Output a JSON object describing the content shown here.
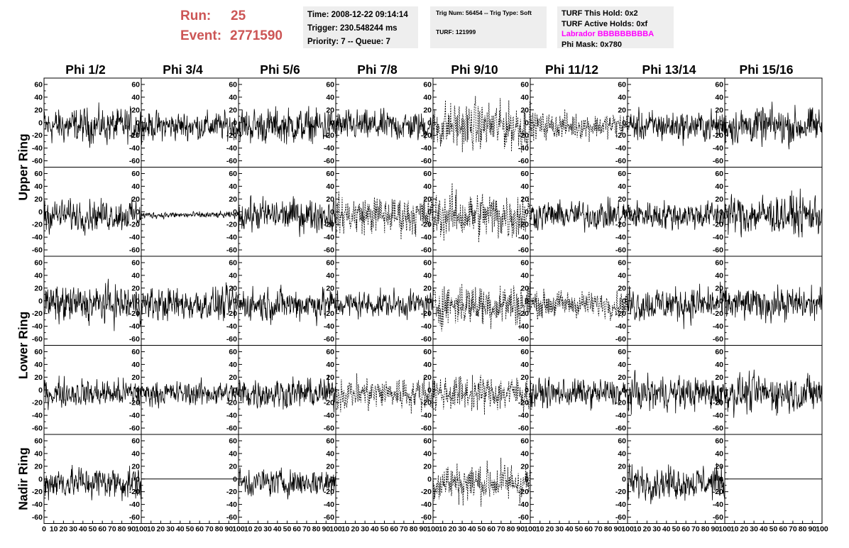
{
  "header": {
    "run_label": "Run:",
    "run_value": "25",
    "event_label": "Event:",
    "event_value": "2771590",
    "time": "Time: 2008-12-22 09:14:14",
    "trigger": "Trigger: 230.548244 ms",
    "priority": "Priority: 7 -- Queue: 7",
    "trig_num": "Trig Num: 56454 -- Trig Type: Soft",
    "turf": "TURF: 121999",
    "turf_this_hold": "TURF This Hold: 0x2",
    "turf_active_holds": "TURF Active Holds: 0xf",
    "labrador": "Labrador BBBBBBBBBA",
    "phi_mask": "Phi Mask: 0x780"
  },
  "columns": [
    "Phi 1/2",
    "Phi 3/4",
    "Phi 5/6",
    "Phi 7/8",
    "Phi 9/10",
    "Phi 11/12",
    "Phi 13/14",
    "Phi 15/16"
  ],
  "rows": [
    "Upper Ring",
    "Lower Ring",
    "Nadir Ring"
  ],
  "colors": {
    "title_red": "#cc5555",
    "labrador_magenta": "#ff00ff",
    "box_bg": "#eeeeee"
  },
  "chart_data": {
    "type": "line",
    "grid": false,
    "ylim": [
      -70,
      70
    ],
    "yticks": [
      -60,
      -40,
      -20,
      0,
      20,
      40,
      60
    ],
    "xlim": [
      0,
      100
    ],
    "xticks": [
      0,
      10,
      20,
      30,
      40,
      50,
      60,
      70,
      80,
      90,
      100
    ],
    "samples_per_trace": 260,
    "panel_rows": 5,
    "panel_cols": 8,
    "panels": [
      [
        {
          "style": "solid",
          "amp": 16
        },
        {
          "style": "solid",
          "amp": 13
        },
        {
          "style": "solid",
          "amp": 16
        },
        {
          "style": "solid",
          "amp": 14
        },
        {
          "style": "dashed",
          "amp": 22
        },
        {
          "style": "dashed",
          "amp": 12
        },
        {
          "style": "solid",
          "amp": 14
        },
        {
          "style": "solid",
          "amp": 17
        }
      ],
      [
        {
          "style": "solid",
          "amp": 14
        },
        {
          "style": "solid",
          "amp": 3
        },
        {
          "style": "solid",
          "amp": 15
        },
        {
          "style": "dashed",
          "amp": 18
        },
        {
          "style": "dashed",
          "amp": 22
        },
        {
          "style": "solid",
          "amp": 13
        },
        {
          "style": "solid",
          "amp": 13
        },
        {
          "style": "solid",
          "amp": 18
        }
      ],
      [
        {
          "style": "solid",
          "amp": 17
        },
        {
          "style": "solid",
          "amp": 15
        },
        {
          "style": "solid",
          "amp": 15
        },
        {
          "style": "solid",
          "amp": 12
        },
        {
          "style": "dashed",
          "amp": 20
        },
        {
          "style": "dashed",
          "amp": 12
        },
        {
          "style": "solid",
          "amp": 16
        },
        {
          "style": "solid",
          "amp": 15
        }
      ],
      [
        {
          "style": "solid",
          "amp": 13
        },
        {
          "style": "solid",
          "amp": 11
        },
        {
          "style": "solid",
          "amp": 14
        },
        {
          "style": "dashed",
          "amp": 15
        },
        {
          "style": "dashed",
          "amp": 16
        },
        {
          "style": "solid",
          "amp": 13
        },
        {
          "style": "solid",
          "amp": 15
        },
        {
          "style": "solid",
          "amp": 17
        }
      ],
      [
        {
          "style": "solid",
          "amp": 15
        },
        {
          "style": "flat",
          "amp": 0
        },
        {
          "style": "solid",
          "amp": 13
        },
        {
          "style": "none",
          "amp": 0
        },
        {
          "style": "dashed",
          "amp": 18
        },
        {
          "style": "none",
          "amp": 0
        },
        {
          "style": "solid",
          "amp": 15
        },
        {
          "style": "flat",
          "amp": 0
        }
      ]
    ]
  }
}
